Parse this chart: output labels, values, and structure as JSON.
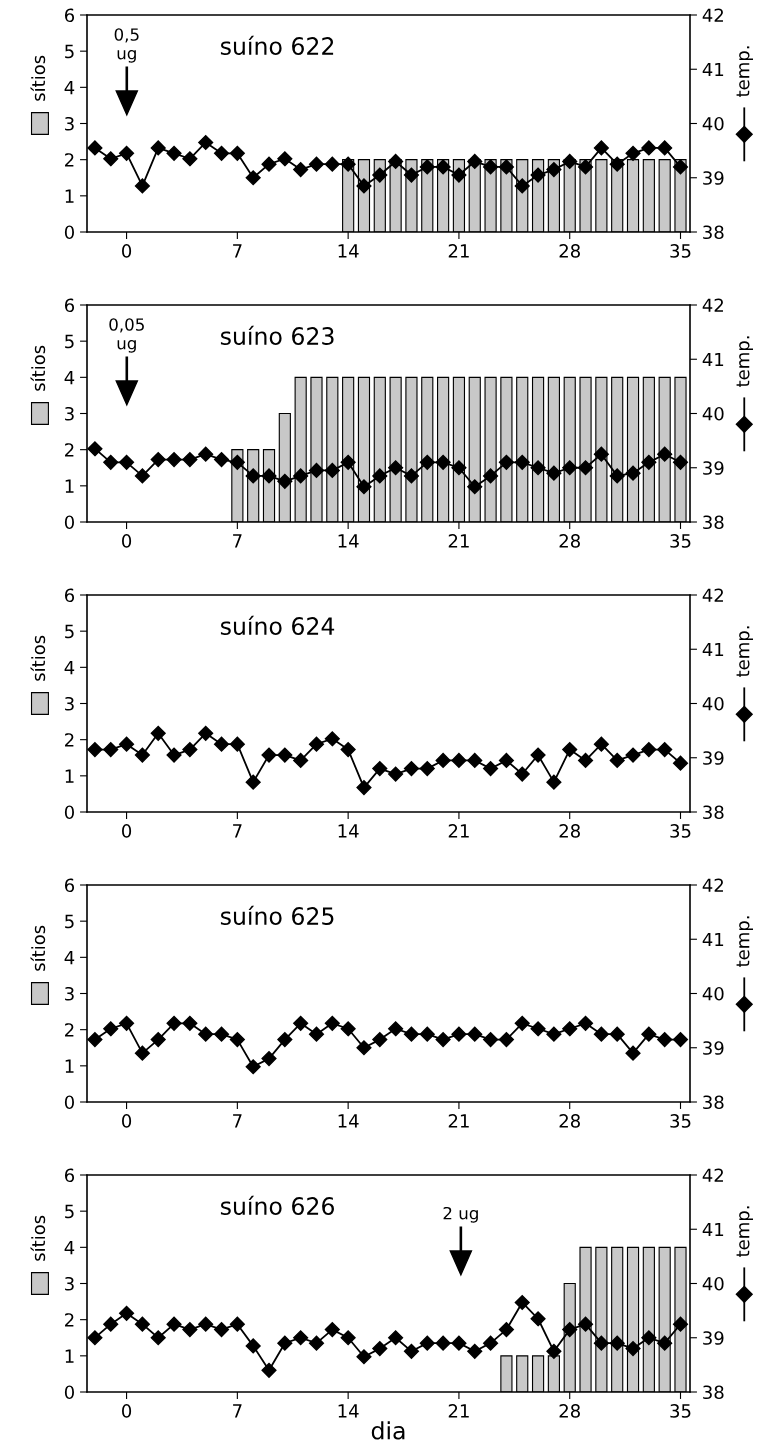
{
  "chart_data": [
    {
      "type": "bar",
      "title": "suíno 622",
      "ylabel": "sítios",
      "y2label": "temp.",
      "xlim": [
        -2.5,
        35.6
      ],
      "xticks": [
        0,
        7,
        14,
        21,
        28,
        35
      ],
      "ylim": [
        0,
        6
      ],
      "yticks": [
        0,
        1,
        2,
        3,
        4,
        5,
        6
      ],
      "y2lim": [
        38,
        42
      ],
      "y2ticks": [
        38,
        39,
        40,
        41,
        42
      ],
      "grid": false,
      "annotations": [
        "0,5\nug"
      ],
      "series": [
        {
          "color": "#c8c8c8",
          "x": [
            14,
            15,
            16,
            17,
            18,
            19,
            20,
            21,
            22,
            23,
            24,
            25,
            26,
            27,
            28,
            29,
            30,
            31,
            32,
            33,
            34,
            35
          ],
          "values": [
            2,
            2,
            2,
            2,
            2,
            2,
            2,
            2,
            2,
            2,
            2,
            2,
            2,
            2,
            2,
            2,
            2,
            2,
            2,
            2,
            2,
            2
          ]
        },
        {
          "type": "line",
          "axis": "y2",
          "color": "#000000",
          "marker": "diamond",
          "x": [
            -2,
            -1,
            0,
            1,
            2,
            3,
            4,
            5,
            6,
            7,
            8,
            9,
            10,
            11,
            12,
            13,
            14,
            15,
            16,
            17,
            18,
            19,
            20,
            21,
            22,
            23,
            24,
            25,
            26,
            27,
            28,
            29,
            30,
            31,
            32,
            33,
            34,
            35
          ],
          "values": [
            39.55,
            39.35,
            39.45,
            38.85,
            39.55,
            39.45,
            39.35,
            39.65,
            39.45,
            39.45,
            39.0,
            39.25,
            39.35,
            39.15,
            39.25,
            39.25,
            39.25,
            38.85,
            39.05,
            39.3,
            39.05,
            39.2,
            39.2,
            39.05,
            39.3,
            39.2,
            39.2,
            38.85,
            39.05,
            39.15,
            39.3,
            39.2,
            39.55,
            39.25,
            39.45,
            39.55,
            39.55,
            39.2
          ]
        }
      ]
    },
    {
      "type": "bar",
      "title": "suíno 623",
      "ylabel": "sítios",
      "y2label": "temp.",
      "xlim": [
        -2.5,
        35.6
      ],
      "xticks": [
        0,
        7,
        14,
        21,
        28,
        35
      ],
      "ylim": [
        0,
        6
      ],
      "yticks": [
        0,
        1,
        2,
        3,
        4,
        5,
        6
      ],
      "y2lim": [
        38,
        42
      ],
      "y2ticks": [
        38,
        39,
        40,
        41,
        42
      ],
      "grid": false,
      "annotations": [
        "0,05\nug"
      ],
      "series": [
        {
          "color": "#c8c8c8",
          "x": [
            7,
            8,
            9,
            10,
            11,
            12,
            13,
            14,
            15,
            16,
            17,
            18,
            19,
            20,
            21,
            22,
            23,
            24,
            25,
            26,
            27,
            28,
            29,
            30,
            31,
            32,
            33,
            34,
            35
          ],
          "values": [
            2,
            2,
            2,
            3,
            4,
            4,
            4,
            4,
            4,
            4,
            4,
            4,
            4,
            4,
            4,
            4,
            4,
            4,
            4,
            4,
            4,
            4,
            4,
            4,
            4,
            4,
            4,
            4,
            4
          ]
        },
        {
          "type": "line",
          "axis": "y2",
          "color": "#000000",
          "marker": "diamond",
          "x": [
            -2,
            -1,
            0,
            1,
            2,
            3,
            4,
            5,
            6,
            7,
            8,
            9,
            10,
            11,
            12,
            13,
            14,
            15,
            16,
            17,
            18,
            19,
            20,
            21,
            22,
            23,
            24,
            25,
            26,
            27,
            28,
            29,
            30,
            31,
            32,
            33,
            34,
            35
          ],
          "values": [
            39.35,
            39.1,
            39.1,
            38.85,
            39.15,
            39.15,
            39.15,
            39.25,
            39.15,
            39.1,
            38.85,
            38.85,
            38.75,
            38.85,
            38.95,
            38.95,
            39.1,
            38.65,
            38.85,
            39.0,
            38.85,
            39.1,
            39.1,
            39.0,
            38.65,
            38.85,
            39.1,
            39.1,
            39.0,
            38.9,
            39.0,
            39.0,
            39.25,
            38.85,
            38.9,
            39.1,
            39.25,
            39.1
          ]
        }
      ]
    },
    {
      "type": "line",
      "title": "suíno 624",
      "ylabel": "sítios",
      "y2label": "temp.",
      "xlim": [
        -2.5,
        35.6
      ],
      "xticks": [
        0,
        7,
        14,
        21,
        28,
        35
      ],
      "ylim": [
        0,
        6
      ],
      "yticks": [
        0,
        1,
        2,
        3,
        4,
        5,
        6
      ],
      "y2lim": [
        38,
        42
      ],
      "y2ticks": [
        38,
        39,
        40,
        41,
        42
      ],
      "grid": false,
      "series": [
        {
          "axis": "y2",
          "color": "#000000",
          "marker": "diamond",
          "x": [
            -2,
            -1,
            0,
            1,
            2,
            3,
            4,
            5,
            6,
            7,
            8,
            9,
            10,
            11,
            12,
            13,
            14,
            15,
            16,
            17,
            18,
            19,
            20,
            21,
            22,
            23,
            24,
            25,
            26,
            27,
            28,
            29,
            30,
            31,
            32,
            33,
            34,
            35
          ],
          "values": [
            39.15,
            39.15,
            39.25,
            39.05,
            39.45,
            39.05,
            39.15,
            39.45,
            39.25,
            39.25,
            38.55,
            39.05,
            39.05,
            38.95,
            39.25,
            39.35,
            39.15,
            38.45,
            38.8,
            38.7,
            38.8,
            38.8,
            38.95,
            38.95,
            38.95,
            38.8,
            38.95,
            38.7,
            39.05,
            38.55,
            39.15,
            38.95,
            39.25,
            38.95,
            39.05,
            39.15,
            39.15,
            38.9
          ]
        }
      ]
    },
    {
      "type": "line",
      "title": "suíno 625",
      "ylabel": "sítios",
      "y2label": "temp.",
      "xlim": [
        -2.5,
        35.6
      ],
      "xticks": [
        0,
        7,
        14,
        21,
        28,
        35
      ],
      "ylim": [
        0,
        6
      ],
      "yticks": [
        0,
        1,
        2,
        3,
        4,
        5,
        6
      ],
      "y2lim": [
        38,
        42
      ],
      "y2ticks": [
        38,
        39,
        40,
        41,
        42
      ],
      "grid": false,
      "series": [
        {
          "axis": "y2",
          "color": "#000000",
          "marker": "diamond",
          "x": [
            -2,
            -1,
            0,
            1,
            2,
            3,
            4,
            5,
            6,
            7,
            8,
            9,
            10,
            11,
            12,
            13,
            14,
            15,
            16,
            17,
            18,
            19,
            20,
            21,
            22,
            23,
            24,
            25,
            26,
            27,
            28,
            29,
            30,
            31,
            32,
            33,
            34,
            35
          ],
          "values": [
            39.15,
            39.35,
            39.45,
            38.9,
            39.15,
            39.45,
            39.45,
            39.25,
            39.25,
            39.15,
            38.65,
            38.8,
            39.15,
            39.45,
            39.25,
            39.45,
            39.35,
            39.0,
            39.15,
            39.35,
            39.25,
            39.25,
            39.15,
            39.25,
            39.25,
            39.15,
            39.15,
            39.45,
            39.35,
            39.25,
            39.35,
            39.45,
            39.25,
            39.25,
            38.9,
            39.25,
            39.15,
            39.15
          ]
        }
      ]
    },
    {
      "type": "bar",
      "title": "suíno 626",
      "xlabel": "dia",
      "ylabel": "sítios",
      "y2label": "temp.",
      "xlim": [
        -2.5,
        35.6
      ],
      "xticks": [
        0,
        7,
        14,
        21,
        28,
        35
      ],
      "ylim": [
        0,
        6
      ],
      "yticks": [
        0,
        1,
        2,
        3,
        4,
        5,
        6
      ],
      "y2lim": [
        38,
        42
      ],
      "y2ticks": [
        38,
        39,
        40,
        41,
        42
      ],
      "grid": false,
      "annotations": [
        "2 ug"
      ],
      "series": [
        {
          "color": "#c8c8c8",
          "x": [
            24,
            25,
            26,
            27,
            28,
            29,
            30,
            31,
            32,
            33,
            34,
            35
          ],
          "values": [
            1,
            1,
            1,
            1,
            3,
            4,
            4,
            4,
            4,
            4,
            4,
            4
          ]
        },
        {
          "type": "line",
          "axis": "y2",
          "color": "#000000",
          "marker": "diamond",
          "x": [
            -2,
            -1,
            0,
            1,
            2,
            3,
            4,
            5,
            6,
            7,
            8,
            9,
            10,
            11,
            12,
            13,
            14,
            15,
            16,
            17,
            18,
            19,
            20,
            21,
            22,
            23,
            24,
            25,
            26,
            27,
            28,
            29,
            30,
            31,
            32,
            33,
            34,
            35
          ],
          "values": [
            39.0,
            39.25,
            39.45,
            39.25,
            39.0,
            39.25,
            39.15,
            39.25,
            39.15,
            39.25,
            38.85,
            38.4,
            38.9,
            39.0,
            38.9,
            39.15,
            39.0,
            38.65,
            38.8,
            39.0,
            38.75,
            38.9,
            38.9,
            38.9,
            38.75,
            38.9,
            39.15,
            39.65,
            39.35,
            38.75,
            39.15,
            39.25,
            38.9,
            38.9,
            38.8,
            39.0,
            38.9,
            39.25
          ]
        }
      ]
    }
  ]
}
